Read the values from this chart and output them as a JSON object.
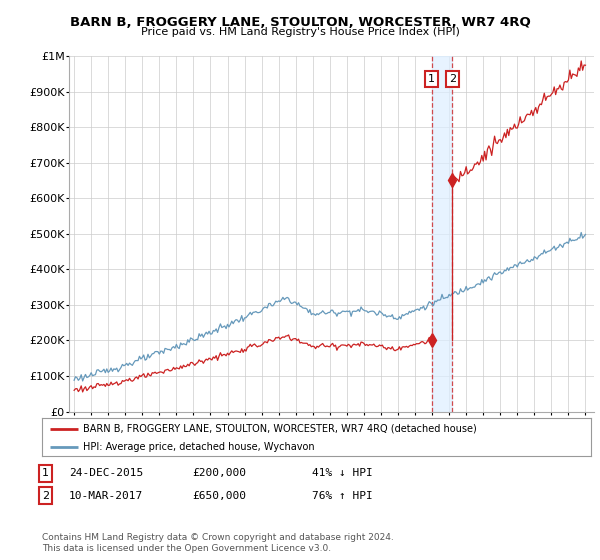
{
  "title": "BARN B, FROGGERY LANE, STOULTON, WORCESTER, WR7 4RQ",
  "subtitle": "Price paid vs. HM Land Registry's House Price Index (HPI)",
  "ylim": [
    0,
    1000000
  ],
  "yticks": [
    0,
    100000,
    200000,
    300000,
    400000,
    500000,
    600000,
    700000,
    800000,
    900000,
    1000000
  ],
  "ytick_labels": [
    "£0",
    "£100K",
    "£200K",
    "£300K",
    "£400K",
    "£500K",
    "£600K",
    "£700K",
    "£800K",
    "£900K",
    "£1M"
  ],
  "sale1_date": 2015.98,
  "sale1_price": 200000,
  "sale2_date": 2017.19,
  "sale2_price": 650000,
  "legend_line1": "BARN B, FROGGERY LANE, STOULTON, WORCESTER, WR7 4RQ (detached house)",
  "legend_line2": "HPI: Average price, detached house, Wychavon",
  "footer": "Contains HM Land Registry data © Crown copyright and database right 2024.\nThis data is licensed under the Open Government Licence v3.0.",
  "red_color": "#cc2222",
  "blue_color": "#6699bb",
  "bg_color": "#ffffff",
  "grid_color": "#cccccc",
  "shade_color": "#ddeeff"
}
